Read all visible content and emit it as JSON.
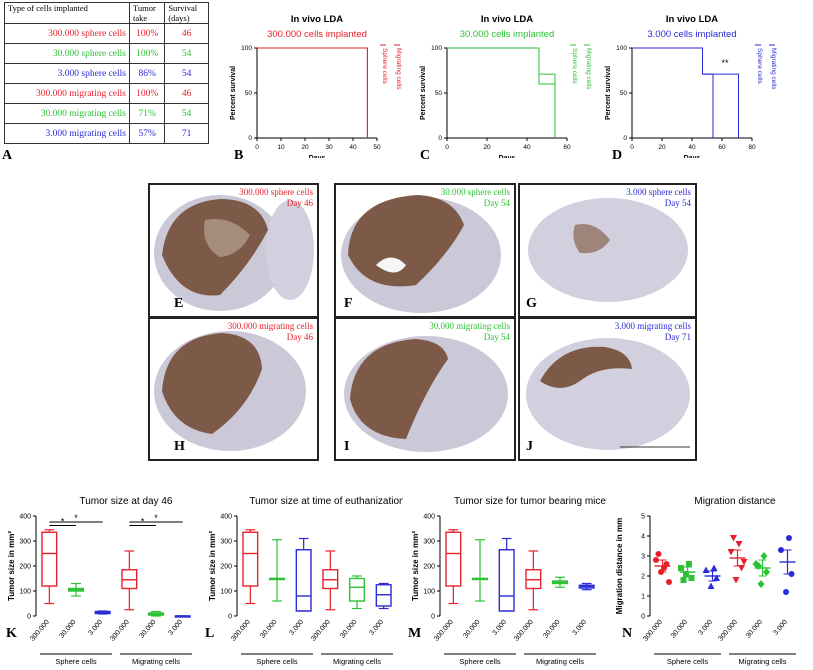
{
  "table": {
    "headers": [
      "Type of cells implanted",
      "Tumor take",
      "Survival (days)"
    ],
    "rows": [
      {
        "type": "300.000 sphere cells",
        "take": "100%",
        "survival": "46",
        "color": "#e8202a"
      },
      {
        "type": "30.000 sphere cells",
        "take": "100%",
        "survival": "54",
        "color": "#2bc234"
      },
      {
        "type": "3.000 sphere cells",
        "take": "86%",
        "survival": "54",
        "color": "#2a2ad6"
      },
      {
        "type": "300.000 migrating cells",
        "take": "100%",
        "survival": "46",
        "color": "#e8202a"
      },
      {
        "type": "30.000 migrating cells",
        "take": "71%",
        "survival": "54",
        "color": "#2bc234"
      },
      {
        "type": "3.000 migrating cells",
        "take": "57%",
        "survival": "71",
        "color": "#2a2ad6"
      }
    ]
  },
  "panel_labels": {
    "A": "A",
    "B": "B",
    "C": "C",
    "D": "D",
    "E": "E",
    "F": "F",
    "G": "G",
    "H": "H",
    "I": "I",
    "J": "J",
    "K": "K",
    "L": "L",
    "M": "M",
    "N": "N"
  },
  "chart_data": [
    {
      "panel": "B",
      "type": "line",
      "title": "In vivo LDA",
      "subtitle": "300.000 cells implanted",
      "xlabel": "Days",
      "ylabel": "Percent survival",
      "xlim": [
        0,
        50
      ],
      "ylim": [
        0,
        100
      ],
      "xticks": [
        0,
        10,
        20,
        30,
        40,
        50
      ],
      "yticks": [
        0,
        50,
        100
      ],
      "color": "#e8202a",
      "legend": [
        "Sphere cells",
        "Migrating cells"
      ],
      "series": [
        {
          "name": "Sphere cells",
          "x": [
            0,
            46,
            46
          ],
          "y": [
            100,
            100,
            0
          ]
        },
        {
          "name": "Migrating cells",
          "x": [
            0,
            46,
            46
          ],
          "y": [
            100,
            100,
            0
          ]
        }
      ]
    },
    {
      "panel": "C",
      "type": "line",
      "title": "In vivo LDA",
      "subtitle": "30.000 cells implanted",
      "xlabel": "Days",
      "ylabel": "Percent survival",
      "xlim": [
        0,
        60
      ],
      "ylim": [
        0,
        100
      ],
      "xticks": [
        0,
        20,
        40,
        60
      ],
      "yticks": [
        0,
        50,
        100
      ],
      "color": "#2bc234",
      "legend": [
        "Sphere cells",
        "Migrating cells"
      ],
      "series": [
        {
          "name": "Sphere cells",
          "x": [
            0,
            46,
            46,
            54,
            54
          ],
          "y": [
            100,
            100,
            71,
            71,
            0
          ]
        },
        {
          "name": "Migrating cells",
          "x": [
            0,
            46,
            46,
            54,
            54
          ],
          "y": [
            100,
            100,
            60,
            60,
            0
          ]
        }
      ]
    },
    {
      "panel": "D",
      "type": "line",
      "title": "In vivo LDA",
      "subtitle": "3.000 cells implanted",
      "xlabel": "Days",
      "ylabel": "Percent survival",
      "xlim": [
        0,
        80
      ],
      "ylim": [
        0,
        100
      ],
      "xticks": [
        0,
        20,
        40,
        60,
        80
      ],
      "yticks": [
        0,
        50,
        100
      ],
      "color": "#2a2ad6",
      "annotation": "**",
      "legend": [
        "Sphere cells",
        "Migrating cells"
      ],
      "series": [
        {
          "name": "Sphere cells",
          "x": [
            0,
            47,
            47,
            54,
            54
          ],
          "y": [
            100,
            100,
            71,
            71,
            0
          ]
        },
        {
          "name": "Migrating cells",
          "x": [
            0,
            47,
            47,
            71,
            71
          ],
          "y": [
            100,
            100,
            71,
            71,
            0
          ]
        }
      ]
    },
    {
      "panel": "K",
      "type": "box",
      "title": "Tumor size at day 46",
      "ylabel": "Tumor size in mm²",
      "ylim": [
        0,
        400
      ],
      "yticks": [
        0,
        100,
        200,
        300,
        400
      ],
      "categories": [
        "300.000",
        "30.000",
        "3.000",
        "300.000",
        "30.000",
        "3.000"
      ],
      "groups": [
        "Sphere cells",
        "Migrating cells"
      ],
      "colors": [
        "#e8202a",
        "#2bc234",
        "#2a2ad6",
        "#e8202a",
        "#2bc234",
        "#2a2ad6"
      ],
      "boxes": [
        {
          "min": 50,
          "q1": 120,
          "median": 250,
          "q3": 335,
          "max": 345
        },
        {
          "min": 80,
          "q1": 100,
          "median": 105,
          "q3": 110,
          "max": 130
        },
        {
          "min": 8,
          "q1": 10,
          "median": 14,
          "q3": 18,
          "max": 20
        },
        {
          "min": 25,
          "q1": 110,
          "median": 145,
          "q3": 185,
          "max": 260
        },
        {
          "min": 0,
          "q1": 4,
          "median": 8,
          "q3": 12,
          "max": 18
        },
        {
          "min": 0,
          "q1": 0,
          "median": 0,
          "q3": 0,
          "max": 0
        }
      ],
      "significance": [
        {
          "from": 0,
          "to": 1,
          "label": "*"
        },
        {
          "from": 0,
          "to": 2,
          "label": "*"
        },
        {
          "from": 3,
          "to": 4,
          "label": "*"
        },
        {
          "from": 3,
          "to": 5,
          "label": "*"
        }
      ]
    },
    {
      "panel": "L",
      "type": "box",
      "title": "Tumor size at time of euthanization",
      "ylabel": "Tumor size in mm²",
      "ylim": [
        0,
        400
      ],
      "yticks": [
        0,
        100,
        200,
        300,
        400
      ],
      "categories": [
        "300.000",
        "30.000",
        "3.000",
        "300.000",
        "30.000",
        "3.000"
      ],
      "groups": [
        "Sphere cells",
        "Migrating cells"
      ],
      "colors": [
        "#e8202a",
        "#2bc234",
        "#2a2ad6",
        "#e8202a",
        "#2bc234",
        "#2a2ad6"
      ],
      "boxes": [
        {
          "min": 50,
          "q1": 120,
          "median": 250,
          "q3": 335,
          "max": 345
        },
        {
          "min": 60,
          "q1": 150,
          "median": 150,
          "q3": 150,
          "max": 305
        },
        {
          "min": 20,
          "q1": 20,
          "median": 80,
          "q3": 265,
          "max": 310
        },
        {
          "min": 25,
          "q1": 110,
          "median": 145,
          "q3": 185,
          "max": 260
        },
        {
          "min": 30,
          "q1": 60,
          "median": 115,
          "q3": 150,
          "max": 160
        },
        {
          "min": 30,
          "q1": 40,
          "median": 85,
          "q3": 125,
          "max": 130
        }
      ]
    },
    {
      "panel": "M",
      "type": "box",
      "title": "Tumor size for tumor bearing mice",
      "ylabel": "Tumor size in mm²",
      "ylim": [
        0,
        400
      ],
      "yticks": [
        0,
        100,
        200,
        300,
        400
      ],
      "categories": [
        "300.000",
        "30.000",
        "3.000",
        "300.000",
        "30.000",
        "3.000"
      ],
      "groups": [
        "Sphere cells",
        "Migrating cells"
      ],
      "colors": [
        "#e8202a",
        "#2bc234",
        "#2a2ad6",
        "#e8202a",
        "#2bc234",
        "#2a2ad6"
      ],
      "boxes": [
        {
          "min": 50,
          "q1": 120,
          "median": 250,
          "q3": 335,
          "max": 345
        },
        {
          "min": 60,
          "q1": 150,
          "median": 150,
          "q3": 150,
          "max": 305
        },
        {
          "min": 20,
          "q1": 20,
          "median": 80,
          "q3": 265,
          "max": 310
        },
        {
          "min": 25,
          "q1": 110,
          "median": 145,
          "q3": 185,
          "max": 260
        },
        {
          "min": 115,
          "q1": 130,
          "median": 135,
          "q3": 140,
          "max": 155
        },
        {
          "min": 105,
          "q1": 112,
          "median": 118,
          "q3": 123,
          "max": 130
        }
      ]
    },
    {
      "panel": "N",
      "type": "scatter",
      "title": "Migration distance",
      "ylabel": "Migration distance in mm",
      "ylim": [
        0,
        5
      ],
      "yticks": [
        0,
        1,
        2,
        3,
        4,
        5
      ],
      "categories": [
        "300.000",
        "30.000",
        "3.000",
        "300.000",
        "30.000",
        "3.000"
      ],
      "groups": [
        "Sphere cells",
        "Migrating cells"
      ],
      "colors": [
        "#e8202a",
        "#2bc234",
        "#2a2ad6",
        "#e8202a",
        "#2bc234",
        "#2a2ad6"
      ],
      "markers": [
        "circle",
        "square",
        "triangle",
        "triangle-down",
        "diamond",
        "circle"
      ],
      "points": [
        [
          2.2,
          2.6,
          2.8,
          2.4,
          3.1,
          1.7
        ],
        [
          2.1,
          1.9,
          2.4,
          2.6,
          1.8
        ],
        [
          1.5,
          1.9,
          2.3,
          2.4
        ],
        [
          1.8,
          2.4,
          3.2,
          3.6,
          3.9,
          2.7
        ],
        [
          1.6,
          2.2,
          2.6,
          3.0,
          2.5
        ],
        [
          1.2,
          2.1,
          3.3,
          3.9
        ]
      ],
      "mean": [
        2.5,
        2.2,
        2.0,
        2.9,
        2.4,
        2.7
      ],
      "sem_low": [
        2.2,
        1.95,
        1.75,
        2.5,
        2.0,
        2.1
      ],
      "sem_high": [
        2.8,
        2.45,
        2.25,
        3.3,
        2.8,
        3.3
      ]
    }
  ],
  "brains": [
    {
      "id": "E",
      "line1": "300.000 sphere cells",
      "line2": "Day 46",
      "color": "#e8202a"
    },
    {
      "id": "F",
      "line1": "30.000 sphere cells",
      "line2": "Day 54",
      "color": "#2bc234"
    },
    {
      "id": "G",
      "line1": "3.000 sphere cells",
      "line2": "Day 54",
      "color": "#2a2ad6"
    },
    {
      "id": "H",
      "line1": "300.000 migrating cells",
      "line2": "Day 46",
      "color": "#e8202a"
    },
    {
      "id": "I",
      "line1": "30.000 migrating cells",
      "line2": "Day 54",
      "color": "#2bc234"
    },
    {
      "id": "J",
      "line1": "3.000 migrating cells",
      "line2": "Day 71",
      "color": "#2a2ad6"
    }
  ]
}
